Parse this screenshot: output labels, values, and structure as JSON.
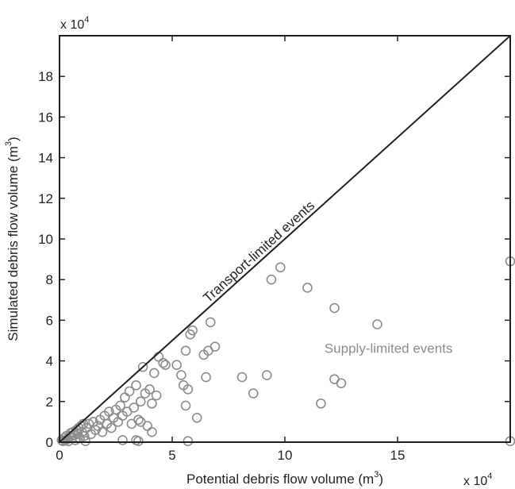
{
  "chart_data": {
    "type": "scatter",
    "title": "",
    "xlabel": "Potential debris flow volume (m",
    "xlabel_sup": "3",
    "xlabel_end": ")",
    "ylabel": "Simulated debris flow volume (m",
    "ylabel_sup": "3",
    "ylabel_end": ")",
    "x_multiplier": "x 10",
    "x_multiplier_exp": "4",
    "y_multiplier": "x 10",
    "y_multiplier_exp": "4",
    "xlim": [
      0,
      20
    ],
    "ylim": [
      0,
      20
    ],
    "xticks": [
      0,
      5,
      10,
      15
    ],
    "yticks": [
      0,
      2,
      4,
      6,
      8,
      10,
      12,
      14,
      16,
      18
    ],
    "grid": false,
    "marker_color": "#8c8c8c",
    "line_color": "#231f20",
    "reference_line": {
      "from": [
        0,
        0
      ],
      "to": [
        20,
        20
      ],
      "label": "Transport-limited events"
    },
    "region_label": {
      "text": "Supply-limited events",
      "x": 14.6,
      "y": 4.4
    },
    "points": [
      [
        0.1,
        0.1
      ],
      [
        0.15,
        0.05
      ],
      [
        0.2,
        0.2
      ],
      [
        0.25,
        0.1
      ],
      [
        0.3,
        0.3
      ],
      [
        0.35,
        0.15
      ],
      [
        0.4,
        0.05
      ],
      [
        0.45,
        0.3
      ],
      [
        0.5,
        0.45
      ],
      [
        0.55,
        0.2
      ],
      [
        0.6,
        0.5
      ],
      [
        0.65,
        0.35
      ],
      [
        0.7,
        0.1
      ],
      [
        0.75,
        0.6
      ],
      [
        0.8,
        0.4
      ],
      [
        0.85,
        0.7
      ],
      [
        0.9,
        0.2
      ],
      [
        0.95,
        0.8
      ],
      [
        1.0,
        0.5
      ],
      [
        1.05,
        0.9
      ],
      [
        1.1,
        0.3
      ],
      [
        1.15,
        0.05
      ],
      [
        1.2,
        0.7
      ],
      [
        1.3,
        0.9
      ],
      [
        1.4,
        0.4
      ],
      [
        1.5,
        1.0
      ],
      [
        1.6,
        0.6
      ],
      [
        1.7,
        0.8
      ],
      [
        1.8,
        1.1
      ],
      [
        1.9,
        0.5
      ],
      [
        2.0,
        1.3
      ],
      [
        2.1,
        0.9
      ],
      [
        2.2,
        1.5
      ],
      [
        2.3,
        0.7
      ],
      [
        2.4,
        1.2
      ],
      [
        2.5,
        1.6
      ],
      [
        2.6,
        1.0
      ],
      [
        2.7,
        1.8
      ],
      [
        2.8,
        1.3
      ],
      [
        2.9,
        2.2
      ],
      [
        3.0,
        1.5
      ],
      [
        3.1,
        2.5
      ],
      [
        3.2,
        0.9
      ],
      [
        3.3,
        1.7
      ],
      [
        3.4,
        2.8
      ],
      [
        3.5,
        1.1
      ],
      [
        3.6,
        2.0
      ],
      [
        3.7,
        3.7
      ],
      [
        3.8,
        2.4
      ],
      [
        3.9,
        0.8
      ],
      [
        4.0,
        2.6
      ],
      [
        4.1,
        1.9
      ],
      [
        4.2,
        3.4
      ],
      [
        4.3,
        2.3
      ],
      [
        4.4,
        4.2
      ],
      [
        4.6,
        3.9
      ],
      [
        4.7,
        3.8
      ],
      [
        2.8,
        0.1
      ],
      [
        3.4,
        0.1
      ],
      [
        3.5,
        0.05
      ],
      [
        3.6,
        1.0
      ],
      [
        4.1,
        0.5
      ],
      [
        5.2,
        3.8
      ],
      [
        5.4,
        3.3
      ],
      [
        5.5,
        2.8
      ],
      [
        5.6,
        4.5
      ],
      [
        5.7,
        2.6
      ],
      [
        5.8,
        5.3
      ],
      [
        5.9,
        5.5
      ],
      [
        5.6,
        1.8
      ],
      [
        5.7,
        0.05
      ],
      [
        6.1,
        1.2
      ],
      [
        6.4,
        4.3
      ],
      [
        6.5,
        3.2
      ],
      [
        6.6,
        4.5
      ],
      [
        6.7,
        5.9
      ],
      [
        6.9,
        4.7
      ],
      [
        8.1,
        3.2
      ],
      [
        8.6,
        2.4
      ],
      [
        9.2,
        3.3
      ],
      [
        9.4,
        8.0
      ],
      [
        9.8,
        8.6
      ],
      [
        11.0,
        7.6
      ],
      [
        11.6,
        1.9
      ],
      [
        12.2,
        6.6
      ],
      [
        12.2,
        3.1
      ],
      [
        12.5,
        2.9
      ],
      [
        14.1,
        5.8
      ],
      [
        20.0,
        8.9
      ],
      [
        20.0,
        0.05
      ]
    ]
  }
}
